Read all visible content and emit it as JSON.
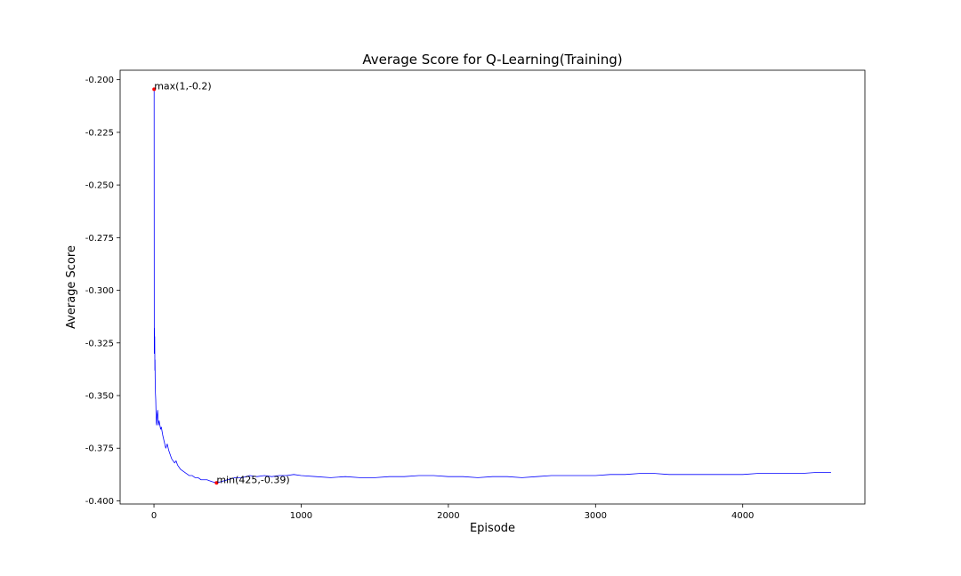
{
  "chart_data": {
    "type": "line",
    "title": "Average Score for Q-Learning(Training)",
    "xlabel": "Episode",
    "ylabel": "Average Score",
    "xlim": [
      -230,
      4830
    ],
    "ylim": [
      -0.4015,
      -0.1955
    ],
    "xticks": [
      0,
      1000,
      2000,
      3000,
      4000
    ],
    "xtick_labels": [
      "0",
      "1000",
      "2000",
      "3000",
      "4000"
    ],
    "yticks": [
      -0.2,
      -0.225,
      -0.25,
      -0.275,
      -0.3,
      -0.325,
      -0.35,
      -0.375,
      -0.4
    ],
    "ytick_labels": [
      "-0.200",
      "-0.225",
      "-0.250",
      "-0.275",
      "-0.300",
      "-0.325",
      "-0.350",
      "-0.375",
      "-0.400"
    ],
    "grid": false,
    "series_color": "#0000ff",
    "marker_color": "#ff0000",
    "series": [
      {
        "x": [
          1,
          2,
          3,
          4,
          5,
          6,
          7,
          8,
          9,
          10,
          12,
          14,
          16,
          18,
          20,
          25,
          30,
          35,
          40,
          45,
          50,
          55,
          60,
          70,
          80,
          90,
          100,
          110,
          120,
          130,
          140,
          150,
          160,
          180,
          200,
          220,
          240,
          260,
          280,
          300,
          320,
          340,
          360,
          380,
          400,
          425,
          450,
          500,
          550,
          600,
          650,
          700,
          750,
          800,
          850,
          900,
          950,
          1000,
          1100,
          1200,
          1300,
          1400,
          1500,
          1600,
          1700,
          1800,
          1900,
          2000,
          2100,
          2200,
          2300,
          2400,
          2500,
          2600,
          2700,
          2800,
          2900,
          3000,
          3100,
          3200,
          3300,
          3400,
          3500,
          3600,
          3700,
          3800,
          3900,
          4000,
          4100,
          4200,
          4300,
          4400,
          4500,
          4600
        ],
        "y": [
          -0.2045,
          -0.33,
          -0.318,
          -0.325,
          -0.322,
          -0.338,
          -0.333,
          -0.342,
          -0.345,
          -0.349,
          -0.352,
          -0.358,
          -0.363,
          -0.364,
          -0.36,
          -0.357,
          -0.364,
          -0.362,
          -0.364,
          -0.366,
          -0.365,
          -0.367,
          -0.369,
          -0.372,
          -0.375,
          -0.373,
          -0.376,
          -0.378,
          -0.38,
          -0.381,
          -0.382,
          -0.381,
          -0.383,
          -0.385,
          -0.386,
          -0.387,
          -0.388,
          -0.388,
          -0.389,
          -0.389,
          -0.39,
          -0.39,
          -0.39,
          -0.3905,
          -0.391,
          -0.3915,
          -0.391,
          -0.39,
          -0.389,
          -0.389,
          -0.388,
          -0.3885,
          -0.388,
          -0.3885,
          -0.388,
          -0.388,
          -0.3875,
          -0.388,
          -0.3885,
          -0.389,
          -0.3885,
          -0.389,
          -0.389,
          -0.3885,
          -0.3885,
          -0.388,
          -0.388,
          -0.3885,
          -0.3885,
          -0.389,
          -0.3885,
          -0.3885,
          -0.389,
          -0.3885,
          -0.388,
          -0.388,
          -0.388,
          -0.388,
          -0.3875,
          -0.3875,
          -0.387,
          -0.387,
          -0.3875,
          -0.3875,
          -0.3875,
          -0.3875,
          -0.3875,
          -0.3875,
          -0.387,
          -0.387,
          -0.387,
          -0.387,
          -0.3865,
          -0.3865
        ]
      }
    ],
    "annotations": [
      {
        "x": 1,
        "y": -0.2045,
        "text": "max(1,-0.2)"
      },
      {
        "x": 425,
        "y": -0.3915,
        "text": "min(425,-0.39)"
      }
    ]
  }
}
